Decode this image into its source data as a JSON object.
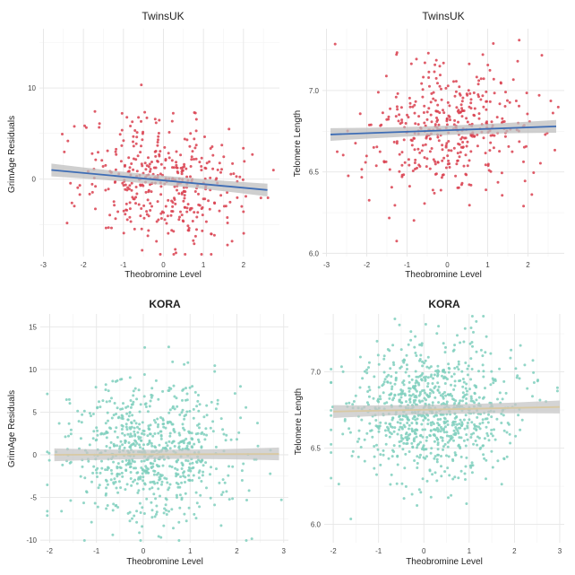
{
  "chart_data": [
    {
      "id": "p1",
      "type": "scatter",
      "title": "TwinsUK",
      "xlabel": "Theobromine Level",
      "ylabel": "GrimAge Residuals",
      "xticks": [
        -3,
        -2,
        -1,
        0,
        1,
        2
      ],
      "yticks": [
        0,
        10
      ],
      "xlim": [
        -3.1,
        2.9
      ],
      "ylim": [
        -8.5,
        16.5
      ],
      "point_color": "#d9404f",
      "grid": true,
      "n_points": 420,
      "x_mean": 0.0,
      "x_sd": 1.0,
      "y_sd": 3.4,
      "fit_line": {
        "x": [
          -2.8,
          2.6
        ],
        "y": [
          1.0,
          -1.2
        ],
        "color": "#3e6db5",
        "band_color": "#bfbfbf"
      }
    },
    {
      "id": "p2",
      "type": "scatter",
      "title": "TwinsUK",
      "xlabel": "Theobromine Level",
      "ylabel": "Telomere Length",
      "xticks": [
        -3,
        -2,
        -1,
        0,
        1,
        2
      ],
      "yticks": [
        6.0,
        6.5,
        7.0
      ],
      "xlim": [
        -3.1,
        2.9
      ],
      "ylim": [
        5.98,
        7.38
      ],
      "point_color": "#d9404f",
      "grid": true,
      "n_points": 420,
      "x_mean": 0.0,
      "x_sd": 1.0,
      "y_sd": 0.21,
      "fit_line": {
        "x": [
          -2.9,
          2.7
        ],
        "y": [
          6.73,
          6.78
        ],
        "color": "#3e6db5",
        "band_color": "#bfbfbf"
      }
    },
    {
      "id": "p3",
      "type": "scatter",
      "title": "KORA",
      "xlabel": "Theobromine Level",
      "ylabel": "GrimAge Residuals",
      "xticks": [
        -2,
        -1,
        0,
        1,
        2,
        3
      ],
      "yticks": [
        -10,
        -5,
        0,
        5,
        10,
        15
      ],
      "xlim": [
        -2.2,
        3.1
      ],
      "ylim": [
        -10.3,
        16.5
      ],
      "point_color": "#7fcfbd",
      "grid": true,
      "n_points": 750,
      "x_mean": 0.2,
      "x_sd": 0.9,
      "y_sd": 4.2,
      "fit_line": {
        "x": [
          -1.9,
          2.9
        ],
        "y": [
          0.0,
          0.1
        ],
        "color": "#d8c9a3",
        "band_color": "#c6c6c6"
      }
    },
    {
      "id": "p4",
      "type": "scatter",
      "title": "KORA",
      "xlabel": "Theobromine Level",
      "ylabel": "Telomere Length",
      "xticks": [
        -2,
        -1,
        0,
        1,
        2,
        3
      ],
      "yticks": [
        6.0,
        6.5,
        7.0
      ],
      "xlim": [
        -2.2,
        3.1
      ],
      "ylim": [
        5.88,
        7.38
      ],
      "point_color": "#7fcfbd",
      "grid": true,
      "n_points": 900,
      "x_mean": 0.2,
      "x_sd": 0.9,
      "y_sd": 0.22,
      "fit_line": {
        "x": [
          -2.0,
          3.0
        ],
        "y": [
          6.74,
          6.77
        ],
        "color": "#d8c9a3",
        "band_color": "#c6c6c6"
      }
    }
  ]
}
